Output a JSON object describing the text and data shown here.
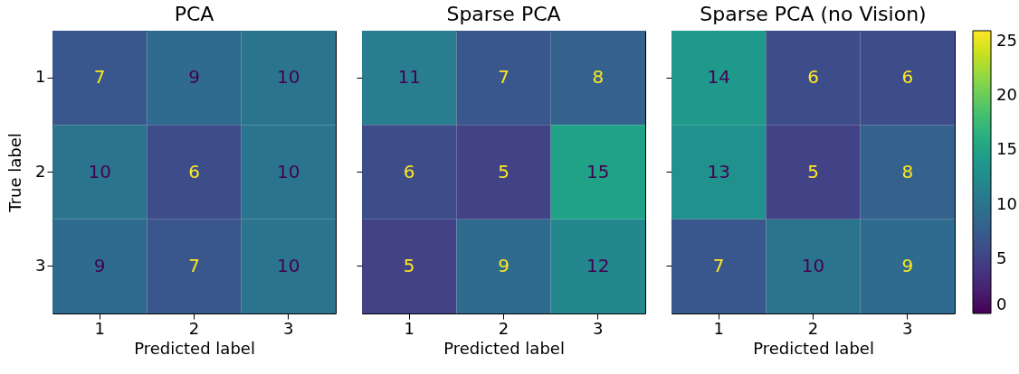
{
  "chart_data": [
    {
      "type": "heatmap",
      "title": "PCA",
      "xlabel": "Predicted label",
      "ylabel": "True label",
      "categories": [
        "1",
        "2",
        "3"
      ],
      "y_categories": [
        "1",
        "2",
        "3"
      ],
      "cells": [
        [
          7,
          9,
          10
        ],
        [
          10,
          6,
          10
        ],
        [
          9,
          7,
          10
        ]
      ],
      "data_labels": true
    },
    {
      "type": "heatmap",
      "title": "Sparse PCA",
      "xlabel": "Predicted label",
      "categories": [
        "1",
        "2",
        "3"
      ],
      "y_categories": [
        "1",
        "2",
        "3"
      ],
      "cells": [
        [
          11,
          7,
          8
        ],
        [
          6,
          5,
          15
        ],
        [
          5,
          9,
          12
        ]
      ],
      "data_labels": true,
      "tick_labels": "x"
    },
    {
      "type": "heatmap",
      "title": "Sparse PCA (no Vision)",
      "xlabel": "Predicted label",
      "categories": [
        "1",
        "2",
        "3"
      ],
      "y_categories": [
        "1",
        "2",
        "3"
      ],
      "cells": [
        [
          14,
          6,
          6
        ],
        [
          13,
          5,
          8
        ],
        [
          7,
          10,
          9
        ]
      ],
      "clim": [
        0,
        26
      ],
      "cticks": [
        0,
        5,
        10,
        15,
        20,
        25
      ],
      "data_labels": true,
      "tick_labels": "x"
    }
  ]
}
